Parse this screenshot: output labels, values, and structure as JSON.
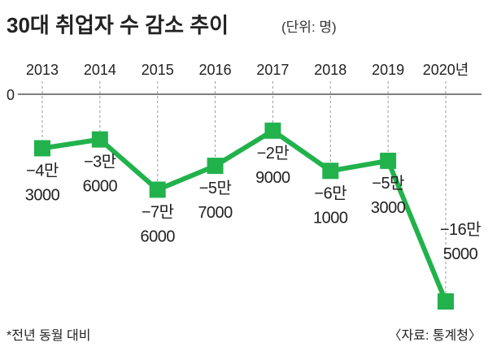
{
  "title": "30대 취업자 수 감소 추이",
  "unit": "(단위: 명)",
  "zero_label": "0",
  "footnote": "*전년 동월 대비",
  "source": "〈자료: 통계청〉",
  "colors": {
    "line": "#22b24c",
    "marker": "#22b24c",
    "axis": "#333333",
    "guide": "#9a9a9a"
  },
  "chart_data": {
    "type": "line",
    "title": "30대 취업자 수 감소 추이",
    "ylabel": "(단위: 명)",
    "xlabel": "",
    "categories": [
      "2013",
      "2014",
      "2015",
      "2016",
      "2017",
      "2018",
      "2019",
      "2020년"
    ],
    "values": [
      -43000,
      -36000,
      -76000,
      -57000,
      -29000,
      -61000,
      -53000,
      -165000
    ],
    "labels": [
      [
        "−4만",
        "3000"
      ],
      [
        "−3만",
        "6000"
      ],
      [
        "−7만",
        "6000"
      ],
      [
        "−5만",
        "7000"
      ],
      [
        "−2만",
        "9000"
      ],
      [
        "−6만",
        "1000"
      ],
      [
        "−5만",
        "3000"
      ],
      [
        "−16만",
        "5000"
      ]
    ],
    "ylim": [
      -175000,
      0
    ],
    "grid": false,
    "legend": "none"
  }
}
